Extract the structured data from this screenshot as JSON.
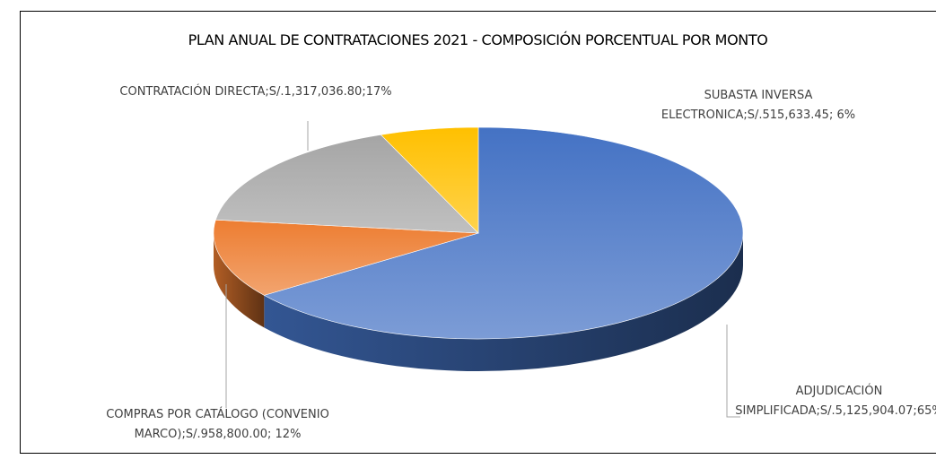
{
  "chart_data": {
    "type": "pie",
    "title": "PLAN ANUAL DE CONTRATACIONES 2021 - COMPOSICIÓN PORCENTUAL POR MONTO",
    "values": [
      65,
      12,
      17,
      6
    ],
    "value_labels": [
      "ADJUDICACIÓN SIMPLIFICADA;S/.5,125,904.07;65%",
      "COMPRAS POR CATÁLOGO (CONVENIO MARCO);S/.958,800.00; 12%",
      "CONTRATACIÓN DIRECTA;S/.1,317,036.80;17%",
      "SUBASTA INVERSA ELECTRONICA;S/.515,633.45; 6%"
    ],
    "colors": [
      "#4472c4",
      "#ed7d31",
      "#a5a5a5",
      "#ffc000"
    ]
  }
}
